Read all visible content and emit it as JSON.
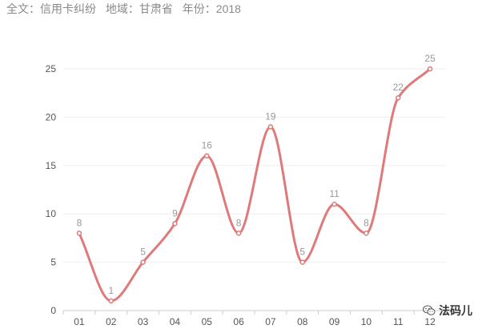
{
  "header": {
    "scope": "全文：信用卡纠纷",
    "region": "地域：甘肃省",
    "year": "年份：2018"
  },
  "watermark": {
    "text": "法码儿",
    "icon": "wechat-icon"
  },
  "colors": {
    "line": "#e07a7a",
    "grid": "#eeeeee",
    "axis": "#cccccc"
  },
  "chart_data": {
    "type": "line",
    "title": "",
    "xlabel": "",
    "ylabel": "",
    "categories": [
      "01",
      "02",
      "03",
      "04",
      "05",
      "06",
      "07",
      "08",
      "09",
      "10",
      "11",
      "12"
    ],
    "values": [
      8,
      1,
      5,
      9,
      16,
      8,
      19,
      5,
      11,
      8,
      22,
      25
    ],
    "yticks": [
      0,
      5,
      10,
      15,
      20,
      25
    ],
    "ylim": [
      0,
      25
    ],
    "smooth": true,
    "data_labels": true,
    "grid": true,
    "legend": "none"
  }
}
